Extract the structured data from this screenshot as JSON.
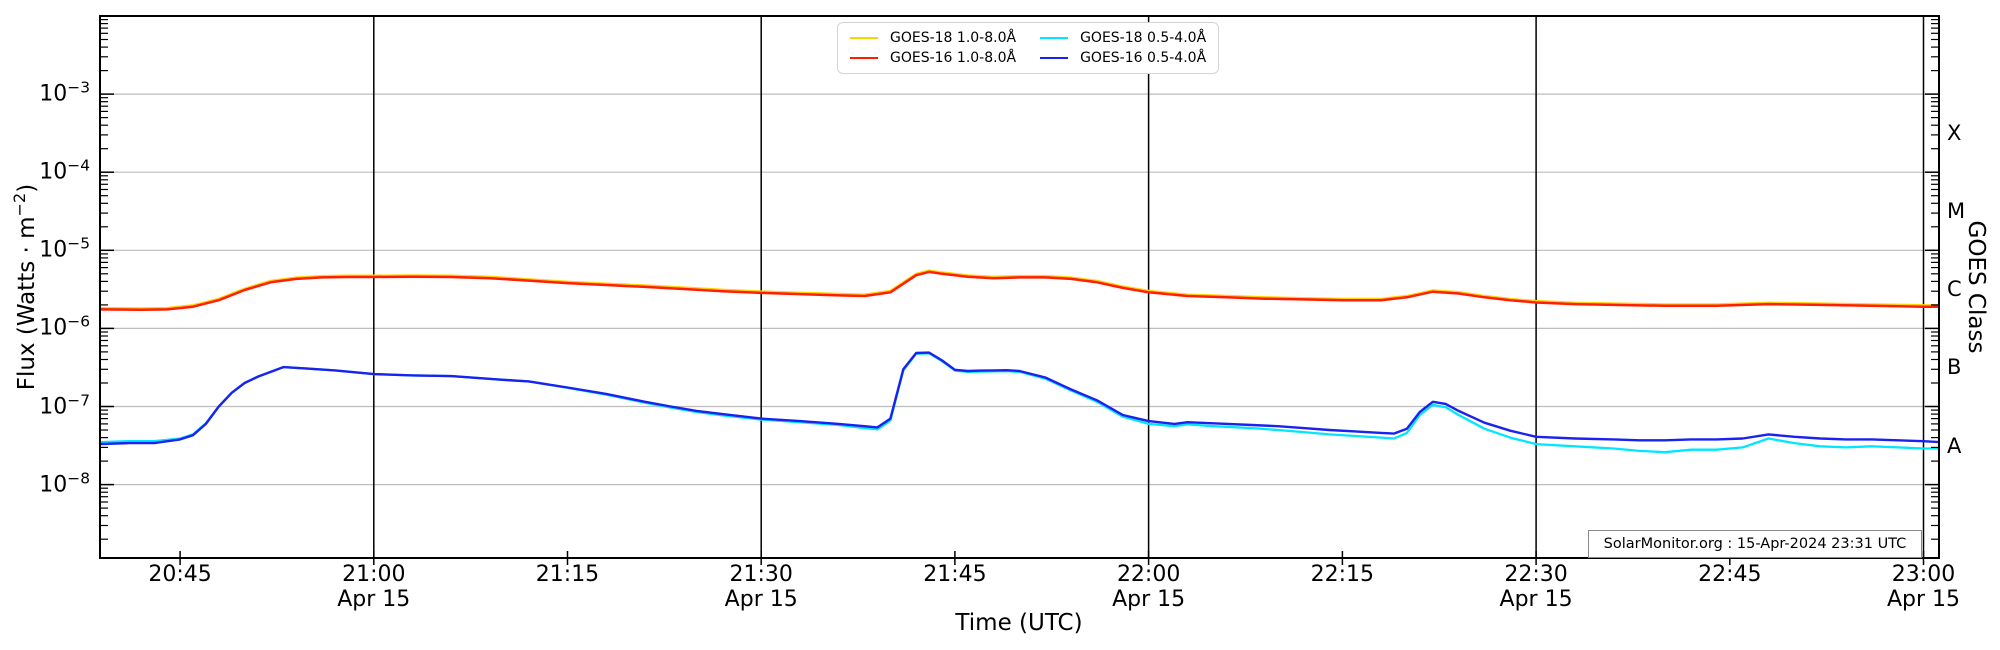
{
  "style": {
    "grid_gray": "#bdbdbd",
    "axis_black": "#000000",
    "background": "#ffffff"
  },
  "axes": {
    "xlabel": "Time (UTC)",
    "ylabel": "Flux (Watts · m^{−2})",
    "right_label": "GOES Class",
    "x_ticks": [
      {
        "minutes": 45,
        "label": "20:45"
      },
      {
        "minutes": 60,
        "label": "21:00",
        "sub": "Apr 15"
      },
      {
        "minutes": 75,
        "label": "21:15"
      },
      {
        "minutes": 90,
        "label": "21:30",
        "sub": "Apr 15"
      },
      {
        "minutes": 105,
        "label": "21:45"
      },
      {
        "minutes": 120,
        "label": "22:00",
        "sub": "Apr 15"
      },
      {
        "minutes": 135,
        "label": "22:15"
      },
      {
        "minutes": 150,
        "label": "22:30",
        "sub": "Apr 15"
      },
      {
        "minutes": 165,
        "label": "22:45"
      },
      {
        "minutes": 180,
        "label": "23:00",
        "sub": "Apr 15"
      }
    ],
    "y_ticks": [
      {
        "exp": -3,
        "label": "10^{−3}"
      },
      {
        "exp": -4,
        "label": "10^{−4}"
      },
      {
        "exp": -5,
        "label": "10^{−5}"
      },
      {
        "exp": -6,
        "label": "10^{−6}"
      },
      {
        "exp": -7,
        "label": "10^{−7}"
      },
      {
        "exp": -8,
        "label": "10^{−8}"
      }
    ],
    "class_labels": [
      {
        "text": "X",
        "band": [
          -4,
          -3
        ]
      },
      {
        "text": "M",
        "band": [
          -5,
          -4
        ]
      },
      {
        "text": "C",
        "band": [
          -6,
          -5
        ]
      },
      {
        "text": "B",
        "band": [
          -7,
          -6
        ]
      },
      {
        "text": "A",
        "band": [
          -8,
          -7
        ]
      }
    ]
  },
  "legend": {
    "items": [
      {
        "label": "GOES-18 1.0-8.0Å",
        "color": "#ffd300"
      },
      {
        "label": "GOES-16 1.0-8.0Å",
        "color": "#ff1e00"
      },
      {
        "label": "GOES-18 0.5-4.0Å",
        "color": "#00e6ff"
      },
      {
        "label": "GOES-16 0.5-4.0Å",
        "color": "#1b22ef"
      }
    ]
  },
  "annotation": "SolarMonitor.org : 15-Apr-2024 23:31 UTC",
  "chart_data": {
    "type": "line",
    "title": "",
    "xlabel": "Time (UTC)",
    "ylabel": "Flux (Watts · m⁻²)",
    "right_axis_label": "GOES Class",
    "x_units": "minutes after 20:00 UTC, 15-Apr-2024",
    "x_range": [
      38.8,
      181.2
    ],
    "y_scale": "log",
    "y_range": [
      1.15e-09,
      0.01
    ],
    "grid": {
      "vertical_black_minutes": [
        60,
        90,
        120,
        150,
        180
      ],
      "horizontal_gray_exponents": [
        -3,
        -4,
        -5,
        -6,
        -7,
        -8
      ]
    },
    "goes_class_bands": {
      "A": [
        1e-08,
        1e-07
      ],
      "B": [
        1e-07,
        1e-06
      ],
      "C": [
        1e-06,
        1e-05
      ],
      "M": [
        1e-05,
        0.0001
      ],
      "X": [
        0.0001,
        0.001
      ]
    },
    "series": [
      {
        "name": "GOES-18 1.0-8.0Å",
        "color": "#ffd300",
        "width": 2.4,
        "x": [
          38.8,
          42,
          44,
          46,
          48,
          50,
          52,
          54,
          56,
          58,
          60,
          63,
          66,
          69,
          72,
          75,
          78,
          81,
          84,
          87,
          90,
          93,
          96,
          98,
          100,
          102,
          103,
          104,
          106,
          108,
          110,
          112,
          114,
          116,
          118,
          120,
          123,
          126,
          129,
          132,
          135,
          138,
          140,
          142,
          144,
          146,
          148,
          150,
          153,
          156,
          160,
          164,
          168,
          172,
          176,
          180,
          181.2
        ],
        "y": [
          1.82e-06,
          1.8e-06,
          1.82e-06,
          1.98e-06,
          2.39e-06,
          3.22e-06,
          4.06e-06,
          4.47e-06,
          4.68e-06,
          4.73e-06,
          4.73e-06,
          4.78e-06,
          4.73e-06,
          4.58e-06,
          4.26e-06,
          3.95e-06,
          3.74e-06,
          3.54e-06,
          3.33e-06,
          3.12e-06,
          2.96e-06,
          2.86e-06,
          2.76e-06,
          2.7e-06,
          3.02e-06,
          4.99e-06,
          5.51e-06,
          5.2e-06,
          4.78e-06,
          4.58e-06,
          4.68e-06,
          4.68e-06,
          4.47e-06,
          4.06e-06,
          3.43e-06,
          3.02e-06,
          2.7e-06,
          2.6e-06,
          2.5e-06,
          2.44e-06,
          2.39e-06,
          2.39e-06,
          2.6e-06,
          3.07e-06,
          2.91e-06,
          2.6e-06,
          2.39e-06,
          2.24e-06,
          2.13e-06,
          2.08e-06,
          2.03e-06,
          2.03e-06,
          2.13e-06,
          2.08e-06,
          2.03e-06,
          1.98e-06,
          1.98e-06
        ]
      },
      {
        "name": "GOES-16 1.0-8.0Å",
        "color": "#ff1e00",
        "width": 2.5,
        "x": [
          38.8,
          42,
          44,
          46,
          48,
          50,
          52,
          54,
          56,
          58,
          60,
          63,
          66,
          69,
          72,
          75,
          78,
          81,
          84,
          87,
          90,
          93,
          96,
          98,
          100,
          102,
          103,
          104,
          106,
          108,
          110,
          112,
          114,
          116,
          118,
          120,
          123,
          126,
          129,
          132,
          135,
          138,
          140,
          142,
          144,
          146,
          148,
          150,
          153,
          156,
          160,
          164,
          168,
          172,
          176,
          180,
          181.2
        ],
        "y": [
          1.75e-06,
          1.73e-06,
          1.75e-06,
          1.9e-06,
          2.3e-06,
          3.1e-06,
          3.9e-06,
          4.3e-06,
          4.5e-06,
          4.55e-06,
          4.55e-06,
          4.6e-06,
          4.55e-06,
          4.4e-06,
          4.1e-06,
          3.8e-06,
          3.6e-06,
          3.4e-06,
          3.2e-06,
          3e-06,
          2.85e-06,
          2.75e-06,
          2.65e-06,
          2.6e-06,
          2.9e-06,
          4.8e-06,
          5.3e-06,
          5e-06,
          4.6e-06,
          4.4e-06,
          4.5e-06,
          4.5e-06,
          4.3e-06,
          3.9e-06,
          3.3e-06,
          2.9e-06,
          2.6e-06,
          2.5e-06,
          2.4e-06,
          2.35e-06,
          2.3e-06,
          2.3e-06,
          2.5e-06,
          2.95e-06,
          2.8e-06,
          2.5e-06,
          2.3e-06,
          2.15e-06,
          2.05e-06,
          2e-06,
          1.95e-06,
          1.95e-06,
          2.05e-06,
          2e-06,
          1.95e-06,
          1.9e-06,
          1.9e-06
        ]
      },
      {
        "name": "GOES-18 0.5-4.0Å",
        "color": "#00e6ff",
        "width": 2.3,
        "x": [
          38.8,
          41,
          43,
          45,
          46,
          47,
          48,
          49,
          50,
          51,
          53,
          55,
          57,
          60,
          63,
          66,
          70,
          72,
          75,
          78,
          81,
          83,
          85,
          87,
          90,
          93,
          96,
          98,
          99,
          100,
          101,
          102,
          103,
          104,
          105,
          106,
          107,
          108,
          109,
          110,
          112,
          114,
          116,
          118,
          120,
          122,
          123,
          125,
          128,
          130,
          132,
          134,
          136,
          138,
          139,
          140,
          141,
          142,
          143,
          144,
          146,
          148,
          150,
          153,
          156,
          158,
          160,
          162,
          164,
          166,
          168,
          170,
          172,
          174,
          176,
          178,
          180,
          181.2
        ],
        "y": [
          3.5e-08,
          3.6e-08,
          3.6e-08,
          3.9e-08,
          4.4e-08,
          6.1e-08,
          1e-07,
          1.5e-07,
          2e-07,
          2.4e-07,
          3.2e-07,
          3.05e-07,
          2.9e-07,
          2.6e-07,
          2.5e-07,
          2.45e-07,
          2.2e-07,
          2.1e-07,
          1.73e-07,
          1.42e-07,
          1.12e-07,
          9.7e-08,
          8.5e-08,
          7.7e-08,
          6.8e-08,
          6.3e-08,
          5.8e-08,
          5.3e-08,
          5.1e-08,
          6.6e-08,
          2.9e-07,
          4.75e-07,
          4.8e-07,
          3.8e-07,
          2.88e-07,
          2.78e-07,
          2.8e-07,
          2.82e-07,
          2.84e-07,
          2.78e-07,
          2.28e-07,
          1.6e-07,
          1.15e-07,
          7.4e-08,
          6e-08,
          5.6e-08,
          5.9e-08,
          5.6e-08,
          5.3e-08,
          5e-08,
          4.7e-08,
          4.4e-08,
          4.2e-08,
          4e-08,
          3.9e-08,
          4.6e-08,
          7.8e-08,
          1.05e-07,
          9.8e-08,
          7.8e-08,
          5.2e-08,
          4e-08,
          3.3e-08,
          3.1e-08,
          2.9e-08,
          2.7e-08,
          2.6e-08,
          2.8e-08,
          2.8e-08,
          3e-08,
          3.9e-08,
          3.4e-08,
          3.1e-08,
          3e-08,
          3.1e-08,
          3e-08,
          2.9e-08,
          2.9e-08
        ]
      },
      {
        "name": "GOES-16 0.5-4.0Å",
        "color": "#1b22ef",
        "width": 2.4,
        "x": [
          38.8,
          41,
          43,
          45,
          46,
          47,
          48,
          49,
          50,
          51,
          53,
          55,
          57,
          60,
          63,
          66,
          70,
          72,
          75,
          78,
          81,
          83,
          85,
          87,
          90,
          93,
          96,
          98,
          99,
          100,
          101,
          102,
          103,
          104,
          105,
          106,
          107,
          108,
          109,
          110,
          112,
          114,
          116,
          118,
          120,
          122,
          123,
          125,
          128,
          130,
          132,
          134,
          136,
          138,
          139,
          140,
          141,
          142,
          143,
          144,
          146,
          148,
          150,
          153,
          156,
          158,
          160,
          162,
          164,
          166,
          168,
          170,
          172,
          174,
          176,
          178,
          180,
          181.2
        ],
        "y": [
          3.3e-08,
          3.4e-08,
          3.4e-08,
          3.8e-08,
          4.3e-08,
          6e-08,
          1e-07,
          1.5e-07,
          2e-07,
          2.4e-07,
          3.2e-07,
          3.05e-07,
          2.9e-07,
          2.6e-07,
          2.5e-07,
          2.45e-07,
          2.2e-07,
          2.1e-07,
          1.75e-07,
          1.45e-07,
          1.15e-07,
          1e-07,
          8.8e-08,
          8e-08,
          7e-08,
          6.5e-08,
          6e-08,
          5.6e-08,
          5.4e-08,
          7e-08,
          3e-07,
          4.85e-07,
          4.9e-07,
          3.9e-07,
          2.95e-07,
          2.85e-07,
          2.88e-07,
          2.9e-07,
          2.92e-07,
          2.85e-07,
          2.35e-07,
          1.65e-07,
          1.2e-07,
          7.8e-08,
          6.5e-08,
          6e-08,
          6.3e-08,
          6.1e-08,
          5.8e-08,
          5.6e-08,
          5.3e-08,
          5e-08,
          4.8e-08,
          4.6e-08,
          4.5e-08,
          5.2e-08,
          8.5e-08,
          1.15e-07,
          1.08e-07,
          8.8e-08,
          6.2e-08,
          4.9e-08,
          4.1e-08,
          3.9e-08,
          3.8e-08,
          3.7e-08,
          3.7e-08,
          3.8e-08,
          3.8e-08,
          3.9e-08,
          4.4e-08,
          4.1e-08,
          3.9e-08,
          3.8e-08,
          3.8e-08,
          3.7e-08,
          3.6e-08,
          3.5e-08
        ]
      }
    ],
    "legend_entries": [
      "GOES-18 1.0-8.0Å",
      "GOES-16 1.0-8.0Å",
      "GOES-18 0.5-4.0Å",
      "GOES-16 0.5-4.0Å"
    ],
    "legend_position": "top center",
    "annotation": "SolarMonitor.org : 15-Apr-2024 23:31 UTC"
  }
}
